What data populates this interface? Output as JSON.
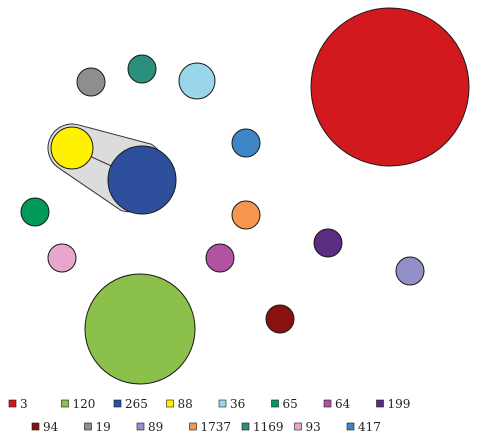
{
  "chart_data": {
    "type": "bubble",
    "title": "",
    "grid": false,
    "legend_position": "bottom",
    "series": [
      {
        "label": "3",
        "color": "#d2191e"
      },
      {
        "label": "120",
        "color": "#8bc04a"
      },
      {
        "label": "265",
        "color": "#2d4f9c"
      },
      {
        "label": "88",
        "color": "#fff200"
      },
      {
        "label": "36",
        "color": "#99d6ea"
      },
      {
        "label": "65",
        "color": "#009a5a"
      },
      {
        "label": "64",
        "color": "#b0529f"
      },
      {
        "label": "199",
        "color": "#5a2d83"
      },
      {
        "label": "94",
        "color": "#8b1010"
      },
      {
        "label": "19",
        "color": "#8e8e8e"
      },
      {
        "label": "89",
        "color": "#9191c8"
      },
      {
        "label": "1737",
        "color": "#f6954f"
      },
      {
        "label": "1169",
        "color": "#2b8f7d"
      },
      {
        "label": "93",
        "color": "#e8a6cc"
      },
      {
        "label": "417",
        "color": "#3f86c8"
      }
    ],
    "linked_pair": [
      "88",
      "265"
    ]
  }
}
